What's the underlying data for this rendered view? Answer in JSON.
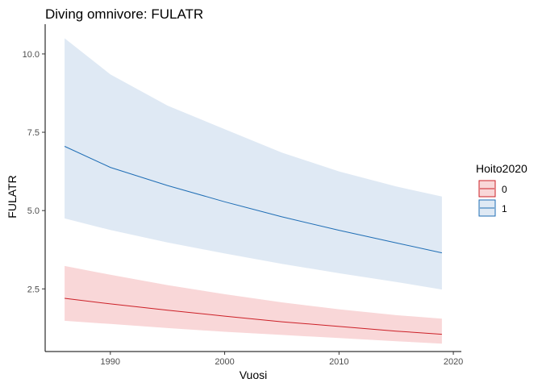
{
  "chart_data": {
    "type": "line",
    "title": "Diving omnivore: FULATR",
    "xlabel": "Vuosi",
    "ylabel": "FULATR",
    "xlim": [
      1984.3,
      2020.7
    ],
    "ylim": [
      0.5,
      10.95
    ],
    "x_ticks": [
      1990,
      2000,
      2010,
      2020
    ],
    "y_ticks": [
      2.5,
      5.0,
      7.5,
      10.0
    ],
    "y_tick_labels": [
      "2.5",
      "5.0",
      "7.5",
      "10.0"
    ],
    "grid": false,
    "legend": {
      "title": "Hoito2020",
      "position": "right"
    },
    "x": [
      1986,
      1990,
      1995,
      2000,
      2005,
      2010,
      2015,
      2019
    ],
    "series": [
      {
        "name": "0",
        "line_color": "#cc2027",
        "fill_color": "#f9d7d8",
        "values": [
          2.2,
          2.02,
          1.82,
          1.63,
          1.45,
          1.3,
          1.15,
          1.05
        ],
        "lower": [
          1.48,
          1.38,
          1.25,
          1.13,
          1.03,
          0.93,
          0.83,
          0.75
        ],
        "upper": [
          3.23,
          2.95,
          2.62,
          2.33,
          2.07,
          1.85,
          1.66,
          1.55
        ]
      },
      {
        "name": "1",
        "line_color": "#1f6eb5",
        "fill_color": "#dfe9f4",
        "values": [
          7.05,
          6.38,
          5.8,
          5.28,
          4.8,
          4.37,
          3.97,
          3.65
        ],
        "lower": [
          4.75,
          4.38,
          3.98,
          3.63,
          3.3,
          3.0,
          2.72,
          2.48
        ],
        "upper": [
          10.5,
          9.35,
          8.35,
          7.6,
          6.85,
          6.25,
          5.77,
          5.45
        ]
      }
    ]
  }
}
